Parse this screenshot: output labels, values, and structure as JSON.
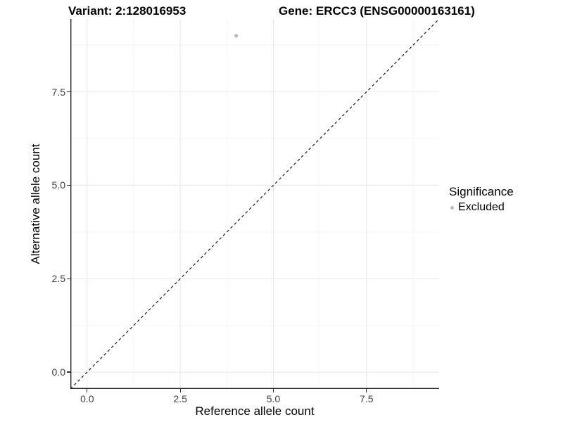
{
  "titles": {
    "variant": "Variant: 2:128016953",
    "gene": "Gene: ERCC3 (ENSG00000163161)"
  },
  "chart_data": {
    "type": "scatter",
    "xlabel": "Reference allele count",
    "ylabel": "Alternative allele count",
    "xlim": [
      -0.45,
      9.45
    ],
    "ylim": [
      -0.45,
      9.45
    ],
    "xticks": [
      0.0,
      2.5,
      5.0,
      7.5
    ],
    "yticks": [
      0.0,
      2.5,
      5.0,
      7.5
    ],
    "xtick_labels": [
      "0.0",
      "2.5",
      "5.0",
      "7.5"
    ],
    "ytick_labels": [
      "0.0",
      "2.5",
      "5.0",
      "7.5"
    ],
    "minor_ticks": [
      1.25,
      3.75,
      6.25,
      8.75
    ],
    "grid": true,
    "series": [
      {
        "name": "Excluded",
        "color": "#b9b9b9",
        "points": [
          {
            "x": 4,
            "y": 9
          }
        ]
      }
    ],
    "reference_line": {
      "kind": "identity",
      "slope": 1,
      "intercept": 0,
      "style": "dashed",
      "color": "#1a1a1a"
    },
    "legend": {
      "position": "right",
      "title": "Significance",
      "items": [
        {
          "label": "Excluded",
          "color": "#b9b9b9"
        }
      ]
    },
    "colors": {
      "point": "#b9b9b9",
      "grid_major": "#e8e8e8",
      "grid_minor": "#f4f4f4",
      "axis_line": "#262626",
      "tick_text": "#404040"
    }
  }
}
